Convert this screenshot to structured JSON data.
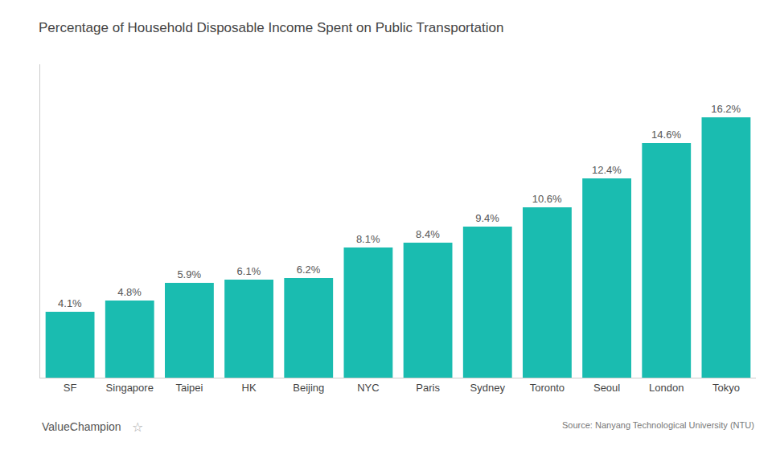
{
  "chart_data": {
    "type": "bar",
    "title": "Percentage of Household Disposable Income Spent on Public Transportation",
    "categories": [
      "SF",
      "Singapore",
      "Taipei",
      "HK",
      "Beijing",
      "NYC",
      "Paris",
      "Sydney",
      "Toronto",
      "Seoul",
      "London",
      "Tokyo"
    ],
    "values": [
      4.1,
      4.8,
      5.9,
      6.1,
      6.2,
      8.1,
      8.4,
      9.4,
      10.6,
      12.4,
      14.6,
      16.2
    ],
    "value_labels": [
      "4.1%",
      "4.8%",
      "5.9%",
      "6.1%",
      "6.2%",
      "8.1%",
      "8.4%",
      "9.4%",
      "10.6%",
      "12.4%",
      "14.6%",
      "16.2%"
    ],
    "data_labels": true,
    "color": "#1ABCB0",
    "ylim": [
      0,
      19.5
    ],
    "yticks": [],
    "tick_labels": "x",
    "grid": false,
    "annotations": [
      "Source: Nanyang Technological University (NTU)",
      "ValueChampion",
      "☆"
    ]
  }
}
